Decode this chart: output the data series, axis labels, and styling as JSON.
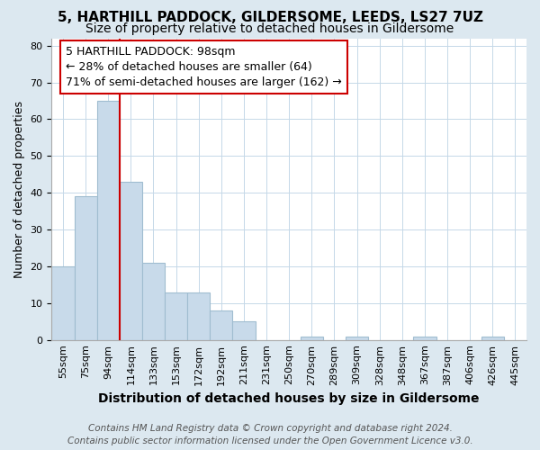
{
  "title": "5, HARTHILL PADDOCK, GILDERSOME, LEEDS, LS27 7UZ",
  "subtitle": "Size of property relative to detached houses in Gildersome",
  "xlabel": "Distribution of detached houses by size in Gildersome",
  "ylabel": "Number of detached properties",
  "bar_labels": [
    "55sqm",
    "75sqm",
    "94sqm",
    "114sqm",
    "133sqm",
    "153sqm",
    "172sqm",
    "192sqm",
    "211sqm",
    "231sqm",
    "250sqm",
    "270sqm",
    "289sqm",
    "309sqm",
    "328sqm",
    "348sqm",
    "367sqm",
    "387sqm",
    "406sqm",
    "426sqm",
    "445sqm"
  ],
  "bar_values": [
    20,
    39,
    65,
    43,
    21,
    13,
    13,
    8,
    5,
    0,
    0,
    1,
    0,
    1,
    0,
    0,
    1,
    0,
    0,
    1,
    0
  ],
  "bar_color": "#c8daea",
  "bar_edgecolor": "#a0bdd0",
  "bar_linewidth": 0.8,
  "vline_color": "#cc0000",
  "vline_linewidth": 1.5,
  "vline_index": 2.5,
  "annotation_line1": "5 HARTHILL PADDOCK: 98sqm",
  "annotation_line2": "← 28% of detached houses are smaller (64)",
  "annotation_line3": "71% of semi-detached houses are larger (162) →",
  "ylim": [
    0,
    82
  ],
  "yticks": [
    0,
    10,
    20,
    30,
    40,
    50,
    60,
    70,
    80
  ],
  "footer_line1": "Contains HM Land Registry data © Crown copyright and database right 2024.",
  "footer_line2": "Contains public sector information licensed under the Open Government Licence v3.0.",
  "bg_color": "#dce8f0",
  "plot_bg_color": "#ffffff",
  "title_fontsize": 11,
  "subtitle_fontsize": 10,
  "xlabel_fontsize": 10,
  "ylabel_fontsize": 9,
  "tick_fontsize": 8,
  "annotation_fontsize": 9,
  "footer_fontsize": 7.5
}
